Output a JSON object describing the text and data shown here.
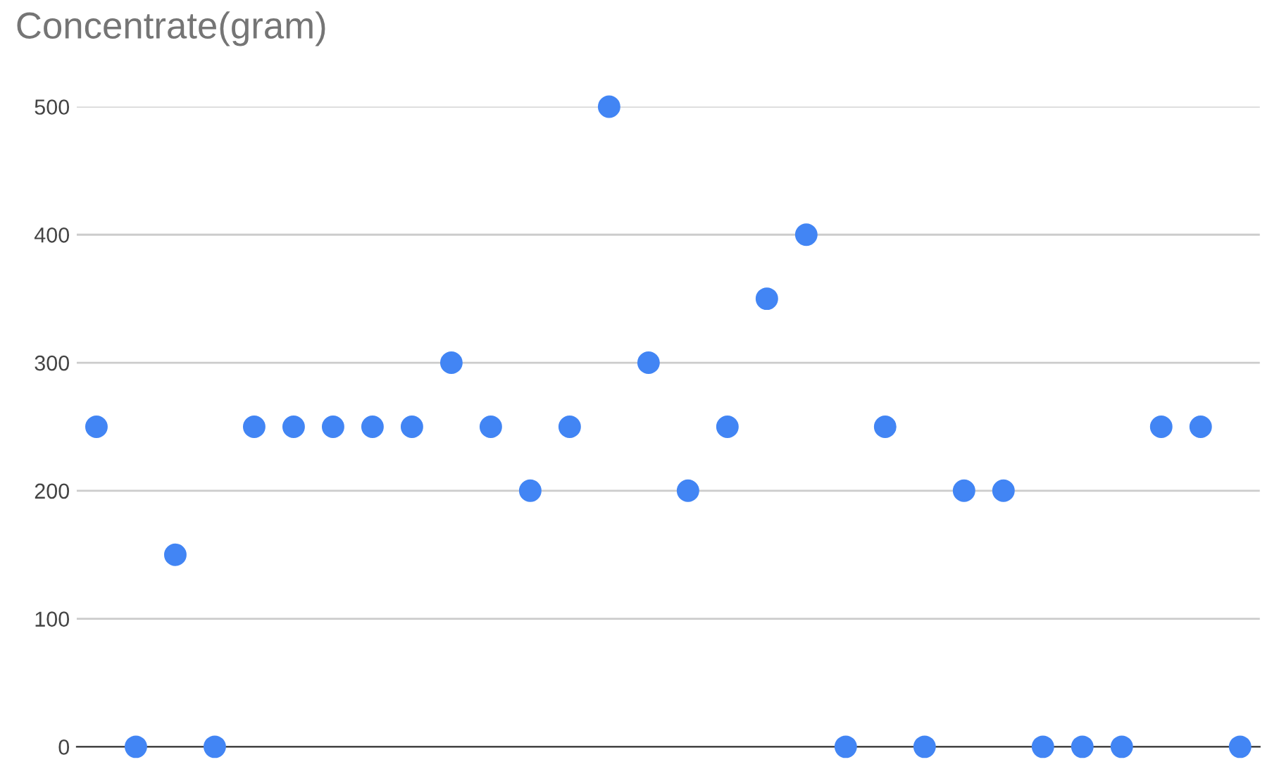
{
  "chart_data": {
    "type": "scatter",
    "title": "Concentrate(gram)",
    "categories": [
      null,
      null,
      null,
      null,
      null,
      null,
      null,
      null,
      null,
      null,
      null,
      null,
      null,
      null,
      null,
      null,
      null,
      null,
      null,
      null,
      null,
      null,
      null,
      null,
      null,
      null,
      null,
      null,
      null,
      null
    ],
    "series": [
      {
        "color": "#4285f4",
        "values": [
          250,
          0,
          150,
          0,
          250,
          250,
          250,
          250,
          250,
          300,
          250,
          200,
          250,
          500,
          300,
          200,
          250,
          350,
          400,
          0,
          250,
          0,
          200,
          200,
          0,
          0,
          0,
          250,
          250,
          0
        ]
      }
    ],
    "ylim": [
      0,
      500
    ],
    "yticks": [
      0,
      100,
      200,
      300,
      400,
      500
    ],
    "grid": "y",
    "marker": "circle",
    "legend": false
  }
}
